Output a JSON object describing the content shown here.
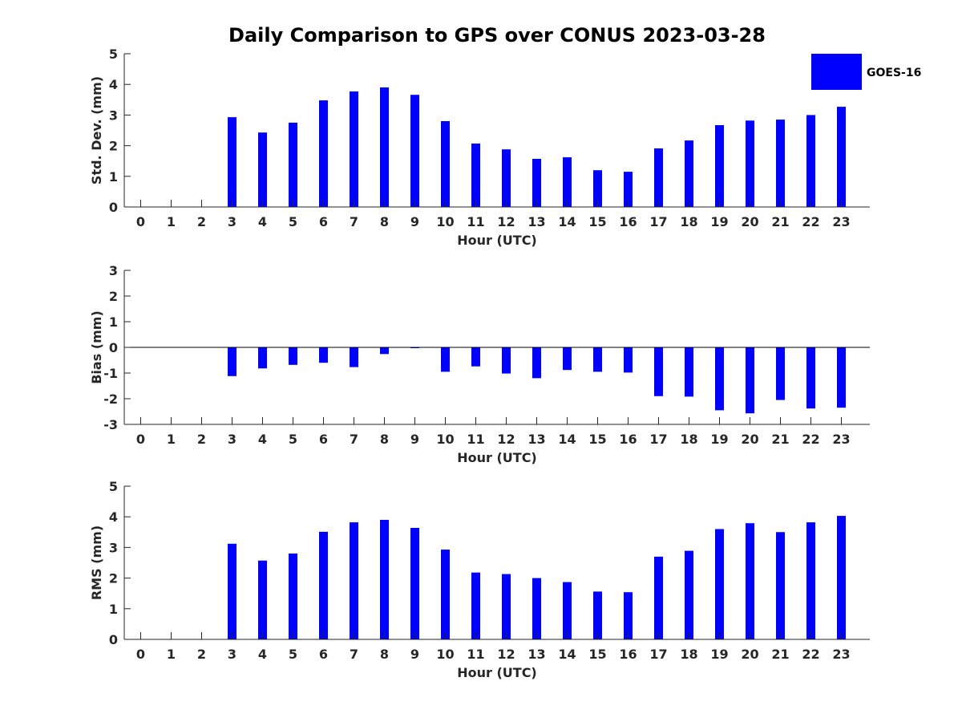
{
  "title": "Daily Comparison to GPS over CONUS 2023-03-28",
  "legend": {
    "label": "GOES-16",
    "color": "#0000ff",
    "placement": "top-right"
  },
  "colors": {
    "bar": "#0000ff",
    "axis": "#262626"
  },
  "chart_data": [
    {
      "type": "bar",
      "name": "stddev",
      "xlabel": "Hour (UTC)",
      "ylabel": "Std. Dev. (mm)",
      "ylim": [
        0,
        5
      ],
      "yticks": [
        0,
        1,
        2,
        3,
        4,
        5
      ],
      "categories": [
        "0",
        "1",
        "2",
        "3",
        "4",
        "5",
        "6",
        "7",
        "8",
        "9",
        "10",
        "11",
        "12",
        "13",
        "14",
        "15",
        "16",
        "17",
        "18",
        "19",
        "20",
        "21",
        "22",
        "23"
      ],
      "series": [
        {
          "name": "GOES-16",
          "values": [
            null,
            null,
            null,
            2.93,
            2.43,
            2.75,
            3.48,
            3.77,
            3.9,
            3.66,
            2.8,
            2.07,
            1.88,
            1.57,
            1.62,
            1.2,
            1.15,
            1.91,
            2.17,
            2.67,
            2.82,
            2.85,
            3.0,
            3.27
          ]
        }
      ],
      "grid": false
    },
    {
      "type": "bar",
      "name": "bias",
      "xlabel": "Hour (UTC)",
      "ylabel": "Bias (mm)",
      "ylim": [
        -3,
        3
      ],
      "yticks": [
        -3,
        -2,
        -1,
        0,
        1,
        2,
        3
      ],
      "categories": [
        "0",
        "1",
        "2",
        "3",
        "4",
        "5",
        "6",
        "7",
        "8",
        "9",
        "10",
        "11",
        "12",
        "13",
        "14",
        "15",
        "16",
        "17",
        "18",
        "19",
        "20",
        "21",
        "22",
        "23"
      ],
      "series": [
        {
          "name": "GOES-16",
          "values": [
            null,
            null,
            null,
            -1.12,
            -0.82,
            -0.68,
            -0.6,
            -0.77,
            -0.26,
            -0.03,
            -0.95,
            -0.74,
            -1.02,
            -1.2,
            -0.88,
            -0.95,
            -0.98,
            -1.9,
            -1.92,
            -2.45,
            -2.57,
            -2.05,
            -2.38,
            -2.35
          ]
        }
      ],
      "grid": false
    },
    {
      "type": "bar",
      "name": "rms",
      "xlabel": "Hour (UTC)",
      "ylabel": "RMS (mm)",
      "ylim": [
        0,
        5
      ],
      "yticks": [
        0,
        1,
        2,
        3,
        4,
        5
      ],
      "categories": [
        "0",
        "1",
        "2",
        "3",
        "4",
        "5",
        "6",
        "7",
        "8",
        "9",
        "10",
        "11",
        "12",
        "13",
        "14",
        "15",
        "16",
        "17",
        "18",
        "19",
        "20",
        "21",
        "22",
        "23"
      ],
      "series": [
        {
          "name": "GOES-16",
          "values": [
            null,
            null,
            null,
            3.12,
            2.57,
            2.8,
            3.51,
            3.82,
            3.9,
            3.64,
            2.93,
            2.18,
            2.13,
            2.0,
            1.87,
            1.56,
            1.54,
            2.7,
            2.89,
            3.6,
            3.79,
            3.5,
            3.82,
            4.03
          ]
        }
      ],
      "grid": false
    }
  ]
}
